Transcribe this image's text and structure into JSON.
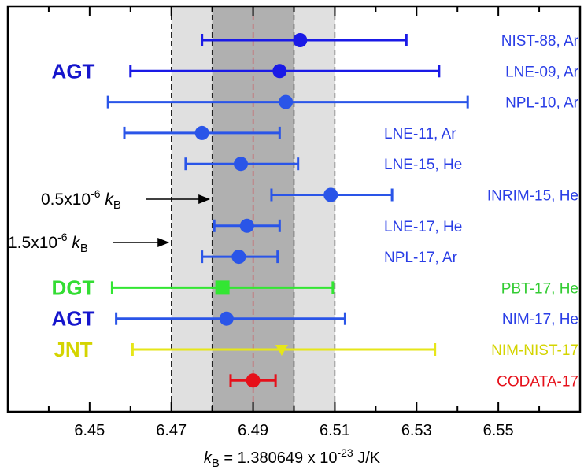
{
  "chart_data": {
    "type": "scatter",
    "subtype": "forest-plot with horizontal error bars",
    "xlabel": {
      "symbol": "k",
      "sub": "B",
      "text": " = 1.380649 x 10",
      "sup": "-23",
      "unit": " J/K"
    },
    "xlim": [
      6.43,
      6.57
    ],
    "x_ticks": [
      6.45,
      6.47,
      6.49,
      6.51,
      6.53,
      6.55
    ],
    "x_tick_labels": [
      "6.45",
      "6.47",
      "6.49",
      "6.51",
      "6.53",
      "6.55"
    ],
    "grid": false,
    "reference_value": 6.49,
    "bands": [
      {
        "from": 6.47,
        "to": 6.51,
        "fill": "#e0e0e0",
        "label": {
          "text": "1.5x10",
          "sup": "-6",
          "sym": "k",
          "sub": "B"
        }
      },
      {
        "from": 6.48,
        "to": 6.5,
        "fill": "#b0b0b0",
        "label": {
          "text": "0.5x10",
          "sup": "-6",
          "sym": "k",
          "sub": "B"
        }
      }
    ],
    "group_labels": [
      {
        "text": "AGT",
        "color": "#1515cc",
        "row": 1
      },
      {
        "text": "DGT",
        "color": "#33dd33",
        "row": 8
      },
      {
        "text": "AGT",
        "color": "#1515cc",
        "row": 9
      },
      {
        "text": "JNT",
        "color": "#d4d400",
        "row": 10
      }
    ],
    "points": [
      {
        "label": "NIST-88, Ar",
        "value": 6.5015,
        "low": 6.4775,
        "high": 6.5275,
        "color": "#1a1ae6",
        "marker": "circle",
        "label_side": "right"
      },
      {
        "label": "LNE-09, Ar",
        "value": 6.4965,
        "low": 6.46,
        "high": 6.5355,
        "color": "#1a1ae6",
        "marker": "circle",
        "label_side": "right"
      },
      {
        "label": "NPL-10, Ar",
        "value": 6.498,
        "low": 6.4545,
        "high": 6.5425,
        "color": "#2a55e8",
        "marker": "circle",
        "label_side": "right"
      },
      {
        "label": "LNE-11, Ar",
        "value": 6.4775,
        "low": 6.4585,
        "high": 6.4965,
        "color": "#2a55e8",
        "marker": "circle",
        "label_side": "right-near"
      },
      {
        "label": "LNE-15, He",
        "value": 6.487,
        "low": 6.4735,
        "high": 6.501,
        "color": "#2a55e8",
        "marker": "circle",
        "label_side": "right-near"
      },
      {
        "label": "INRIM-15, He",
        "value": 6.509,
        "low": 6.4945,
        "high": 6.524,
        "color": "#2a55e8",
        "marker": "circle",
        "label_side": "right"
      },
      {
        "label": "LNE-17, He",
        "value": 6.4885,
        "low": 6.4805,
        "high": 6.4965,
        "color": "#2a55e8",
        "marker": "circle",
        "label_side": "right-near"
      },
      {
        "label": "NPL-17, Ar",
        "value": 6.4865,
        "low": 6.4775,
        "high": 6.496,
        "color": "#2a55e8",
        "marker": "circle",
        "label_side": "right-near"
      },
      {
        "label": "PBT-17, He",
        "value": 6.4825,
        "low": 6.4555,
        "high": 6.5095,
        "color": "#33e633",
        "marker": "square",
        "label_side": "right"
      },
      {
        "label": "NIM-17, He",
        "value": 6.4835,
        "low": 6.4565,
        "high": 6.5125,
        "color": "#2a55e8",
        "marker": "circle",
        "label_side": "right"
      },
      {
        "label": "NIM-NIST-17",
        "value": 6.497,
        "low": 6.4605,
        "high": 6.5345,
        "color": "#e6e619",
        "marker": "triangle-down",
        "label_side": "right"
      },
      {
        "label": "CODATA-17",
        "value": 6.49,
        "low": 6.4845,
        "high": 6.4955,
        "color": "#e6101a",
        "marker": "circle",
        "label_side": "right"
      }
    ]
  }
}
